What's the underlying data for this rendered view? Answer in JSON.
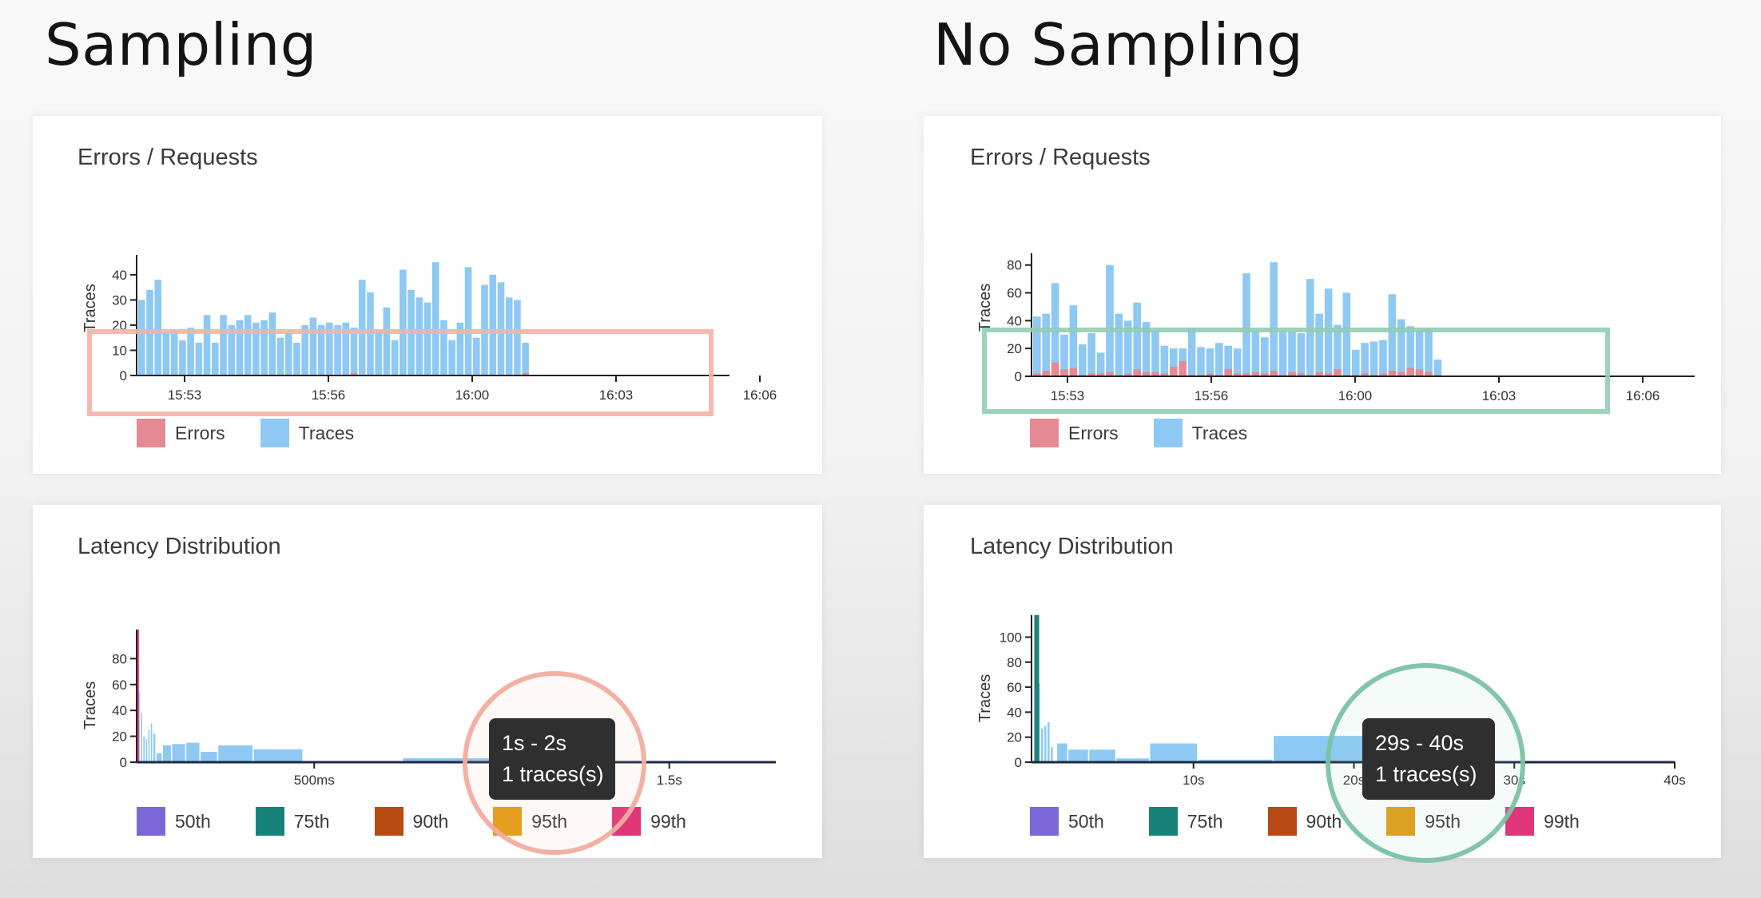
{
  "titles": {
    "left": "Sampling",
    "right": "No Sampling"
  },
  "colors": {
    "traces": "#8ec9f4",
    "errors": "#e58a92",
    "axis": "#222222",
    "highlight_left": "#f4b1a6",
    "highlight_right": "#92cdb4",
    "p50": "#7b68d6",
    "p75": "#17827a",
    "p90": "#b64a12",
    "p95": "#e39c12",
    "p99": "#e1357a",
    "latency_line": "#1d2a44"
  },
  "legend": {
    "errors": "Errors",
    "traces": "Traces",
    "percentiles": [
      "50th",
      "75th",
      "90th",
      "95th",
      "99th"
    ]
  },
  "chart_data": [
    {
      "id": "left-errors",
      "type": "bar",
      "title": "Errors / Requests",
      "ylabel": "Traces",
      "ylim": [
        0,
        46
      ],
      "yticks": [
        0,
        10,
        20,
        30,
        40
      ],
      "xticks": [
        "15:53",
        "15:56",
        "16:00",
        "16:03",
        "16:06"
      ],
      "series": [
        {
          "name": "Traces",
          "values": [
            30,
            34,
            38,
            17,
            18,
            14,
            19,
            13,
            24,
            13,
            24,
            20,
            22,
            24,
            21,
            22,
            25,
            15,
            17,
            13,
            20,
            23,
            20,
            21,
            20,
            21,
            19,
            38,
            33,
            18,
            27,
            14,
            42,
            34,
            31,
            29,
            45,
            22,
            14,
            21,
            43,
            15,
            36,
            40,
            37,
            31,
            30,
            13
          ]
        },
        {
          "name": "Errors",
          "values": [
            0,
            0,
            0,
            0,
            0,
            0,
            0,
            0,
            0,
            0,
            0,
            0,
            0,
            0,
            0,
            0,
            0,
            0,
            0,
            0,
            0,
            0,
            0,
            0,
            0,
            0,
            1,
            0,
            0,
            0,
            0,
            0,
            0,
            0,
            0,
            0,
            0,
            0,
            0,
            0,
            0,
            0,
            0,
            0,
            0,
            0,
            0,
            1
          ]
        }
      ]
    },
    {
      "id": "right-errors",
      "type": "bar",
      "title": "Errors / Requests",
      "ylabel": "Traces",
      "ylim": [
        0,
        85
      ],
      "yticks": [
        0,
        20,
        40,
        60,
        80
      ],
      "xticks": [
        "15:53",
        "15:56",
        "16:00",
        "16:03",
        "16:06"
      ],
      "series": [
        {
          "name": "Traces",
          "values": [
            43,
            45,
            67,
            30,
            51,
            23,
            31,
            17,
            80,
            45,
            40,
            53,
            39,
            33,
            22,
            20,
            20,
            35,
            21,
            20,
            24,
            22,
            20,
            74,
            33,
            28,
            82,
            32,
            32,
            31,
            70,
            45,
            63,
            37,
            60,
            19,
            24,
            25,
            26,
            59,
            41,
            36,
            33,
            34,
            12
          ]
        },
        {
          "name": "Errors",
          "values": [
            2,
            4,
            10,
            5,
            6,
            1,
            2,
            2,
            3,
            1,
            2,
            5,
            3,
            3,
            2,
            7,
            11,
            1,
            1,
            2,
            1,
            5,
            2,
            2,
            3,
            2,
            4,
            1,
            3,
            2,
            1,
            3,
            2,
            5,
            1,
            1,
            2,
            1,
            2,
            4,
            3,
            6,
            5,
            3,
            1
          ]
        }
      ]
    },
    {
      "id": "left-latency",
      "type": "bar",
      "title": "Latency Distribution",
      "ylabel": "Traces",
      "ylim": [
        0,
        100
      ],
      "yticks": [
        0,
        20,
        40,
        60,
        80
      ],
      "xlim": [
        0,
        1.8
      ],
      "xticks": [
        {
          "v": 0.5,
          "label": "500ms"
        },
        {
          "v": 1.5,
          "label": "1.5s"
        }
      ],
      "bins": [
        {
          "x0": 0.005,
          "x1": 0.012,
          "v": 55
        },
        {
          "x0": 0.012,
          "x1": 0.019,
          "v": 38
        },
        {
          "x0": 0.019,
          "x1": 0.026,
          "v": 20
        },
        {
          "x0": 0.026,
          "x1": 0.033,
          "v": 18
        },
        {
          "x0": 0.033,
          "x1": 0.04,
          "v": 25
        },
        {
          "x0": 0.04,
          "x1": 0.047,
          "v": 30
        },
        {
          "x0": 0.047,
          "x1": 0.056,
          "v": 22
        },
        {
          "x0": 0.056,
          "x1": 0.074,
          "v": 7
        },
        {
          "x0": 0.074,
          "x1": 0.1,
          "v": 13
        },
        {
          "x0": 0.1,
          "x1": 0.14,
          "v": 14
        },
        {
          "x0": 0.14,
          "x1": 0.18,
          "v": 15
        },
        {
          "x0": 0.18,
          "x1": 0.23,
          "v": 8
        },
        {
          "x0": 0.23,
          "x1": 0.33,
          "v": 13
        },
        {
          "x0": 0.33,
          "x1": 0.47,
          "v": 10
        },
        {
          "x0": 0.75,
          "x1": 1.0,
          "v": 3
        },
        {
          "x0": 1.0,
          "x1": 1.56,
          "v": 1
        }
      ],
      "markers": [
        {
          "x": 0.003,
          "color": "p99"
        }
      ],
      "tooltip": {
        "range": "1s - 2s",
        "count": "1 traces(s)"
      }
    },
    {
      "id": "right-latency",
      "type": "bar",
      "title": "Latency Distribution",
      "ylabel": "Traces",
      "ylim": [
        0,
        115
      ],
      "yticks": [
        0,
        20,
        40,
        60,
        80,
        100
      ],
      "xlim": [
        0,
        40
      ],
      "xticks": [
        {
          "v": 10,
          "label": "10s"
        },
        {
          "v": 20,
          "label": "20s"
        },
        {
          "v": 30,
          "label": "30s"
        },
        {
          "v": 40,
          "label": "40s"
        }
      ],
      "bins": [
        {
          "x0": 0.3,
          "x1": 0.5,
          "v": 63
        },
        {
          "x0": 0.5,
          "x1": 0.7,
          "v": 27
        },
        {
          "x0": 0.7,
          "x1": 0.9,
          "v": 29
        },
        {
          "x0": 0.9,
          "x1": 1.1,
          "v": 32
        },
        {
          "x0": 1.1,
          "x1": 1.3,
          "v": 12
        },
        {
          "x0": 1.5,
          "x1": 2.2,
          "v": 15
        },
        {
          "x0": 2.2,
          "x1": 3.5,
          "v": 10
        },
        {
          "x0": 3.5,
          "x1": 5.2,
          "v": 10
        },
        {
          "x0": 5.2,
          "x1": 7.3,
          "v": 3
        },
        {
          "x0": 7.3,
          "x1": 10.3,
          "v": 15
        },
        {
          "x0": 10.3,
          "x1": 15.0,
          "v": 2
        },
        {
          "x0": 15.0,
          "x1": 20.7,
          "v": 21
        },
        {
          "x0": 20.7,
          "x1": 29.5,
          "v": 1
        }
      ],
      "markers": [
        {
          "x": 0.15,
          "color": "p75"
        },
        {
          "x": 0.3,
          "color": "p75"
        }
      ],
      "tooltip": {
        "range": "29s - 40s",
        "count": "1 traces(s)"
      }
    }
  ]
}
